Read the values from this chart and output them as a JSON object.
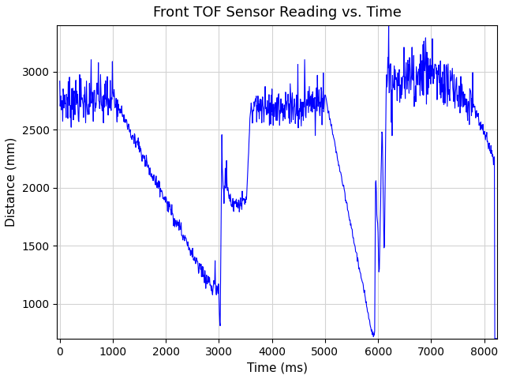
{
  "title": "Front TOF Sensor Reading vs. Time",
  "xlabel": "Time (ms)",
  "ylabel": "Distance (mm)",
  "line_color": "blue",
  "line_width": 0.8,
  "xlim": [
    -50,
    8250
  ],
  "ylim": [
    700,
    3400
  ],
  "yticks": [
    1000,
    1500,
    2000,
    2500,
    3000
  ],
  "xticks": [
    0,
    1000,
    2000,
    3000,
    4000,
    5000,
    6000,
    7000,
    8000
  ],
  "grid": true,
  "figsize": [
    6.4,
    4.8
  ],
  "dpi": 100,
  "seed": 7
}
